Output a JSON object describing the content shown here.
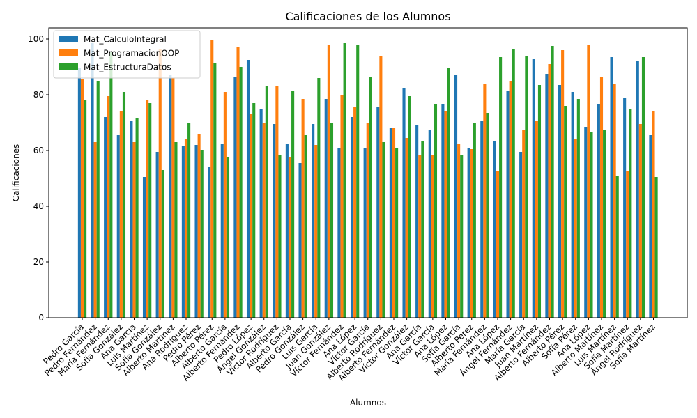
{
  "chart_data": {
    "type": "bar",
    "title": "Calificaciones de los Alumnos",
    "xlabel": "Alumnos",
    "ylabel": "Calificaciones",
    "ylim": [
      0,
      104
    ],
    "yticks": [
      0,
      20,
      40,
      60,
      80,
      100
    ],
    "grid": false,
    "legend_position": "top-left",
    "categories": [
      "Pedro García",
      "Pedro Fernández",
      "María Fernández",
      "Sofía González",
      "Ana García",
      "Luis Martínez",
      "Sofía González",
      "Alberto Martínez",
      "Ana Rodríguez",
      "Pedro Pérez",
      "Alberto Pérez",
      "Alberto García",
      "Alberto Fernández",
      "Pedro López",
      "Ángel González",
      "Víctor Rodríguez",
      "Alberto García",
      "Pedro González",
      "Luis García",
      "Juan González",
      "Víctor Fernández",
      "Ana López",
      "Víctor García",
      "Alberto Rodríguez",
      "Alberto Fernández",
      "Víctor González",
      "Ana García",
      "Víctor García",
      "Ana López",
      "Sofía García",
      "Alberto Pérez",
      "María Fernández",
      "Ana López",
      "Ángel Fernández",
      "María García",
      "Juan Martínez",
      "Alberto Fernández",
      "Alberto Pérez",
      "Sofía Pérez",
      "Ana López",
      "Alberto Martínez",
      "Luis Martínez",
      "Sofía Martínez",
      "Ángel Rodríguez",
      "Sofía Martínez"
    ],
    "series": [
      {
        "name": "Mat_CalculoIntegral",
        "color": "#1f77b4",
        "values": [
          89.5,
          98.5,
          72,
          65.5,
          70.5,
          50.5,
          59.5,
          87,
          61.5,
          62,
          54,
          62.5,
          86.5,
          92.5,
          75,
          69.5,
          62.5,
          55.5,
          69.5,
          78.5,
          61,
          72,
          61,
          75.5,
          68,
          82.5,
          69,
          67.5,
          76.5,
          87,
          61,
          70.5,
          63.5,
          81.5,
          59.5,
          93,
          87.5,
          83.5,
          81,
          68.5,
          76.5,
          93.5,
          79,
          92,
          65.5
        ]
      },
      {
        "name": "Mat_ProgramacionOOP",
        "color": "#ff7f0e",
        "values": [
          85.5,
          63,
          79.5,
          74,
          63,
          78,
          96.5,
          86,
          64,
          66,
          99.5,
          81,
          97,
          73,
          70,
          83,
          57.5,
          78.5,
          62,
          98,
          80,
          75.5,
          70,
          94,
          68,
          64.5,
          58.5,
          58.5,
          74,
          62.5,
          60.5,
          84,
          52.5,
          85,
          67.5,
          70.5,
          91,
          96,
          64,
          98,
          86.5,
          84,
          52.5,
          69.5,
          74
        ]
      },
      {
        "name": "Mat_EstructuraDatos",
        "color": "#2ca02c",
        "values": [
          78,
          85,
          95.5,
          81,
          71.5,
          77,
          53,
          63,
          70,
          60,
          91.5,
          57.5,
          90,
          77,
          83,
          58.5,
          81.5,
          65.5,
          86,
          70,
          98.5,
          98,
          86.5,
          63,
          61,
          79.5,
          63.5,
          76.5,
          89.5,
          58.5,
          70,
          73.5,
          93.5,
          96.5,
          94,
          83.5,
          97.5,
          76,
          78.5,
          66.5,
          67.5,
          51,
          75,
          93.5,
          50.5
        ]
      }
    ]
  }
}
